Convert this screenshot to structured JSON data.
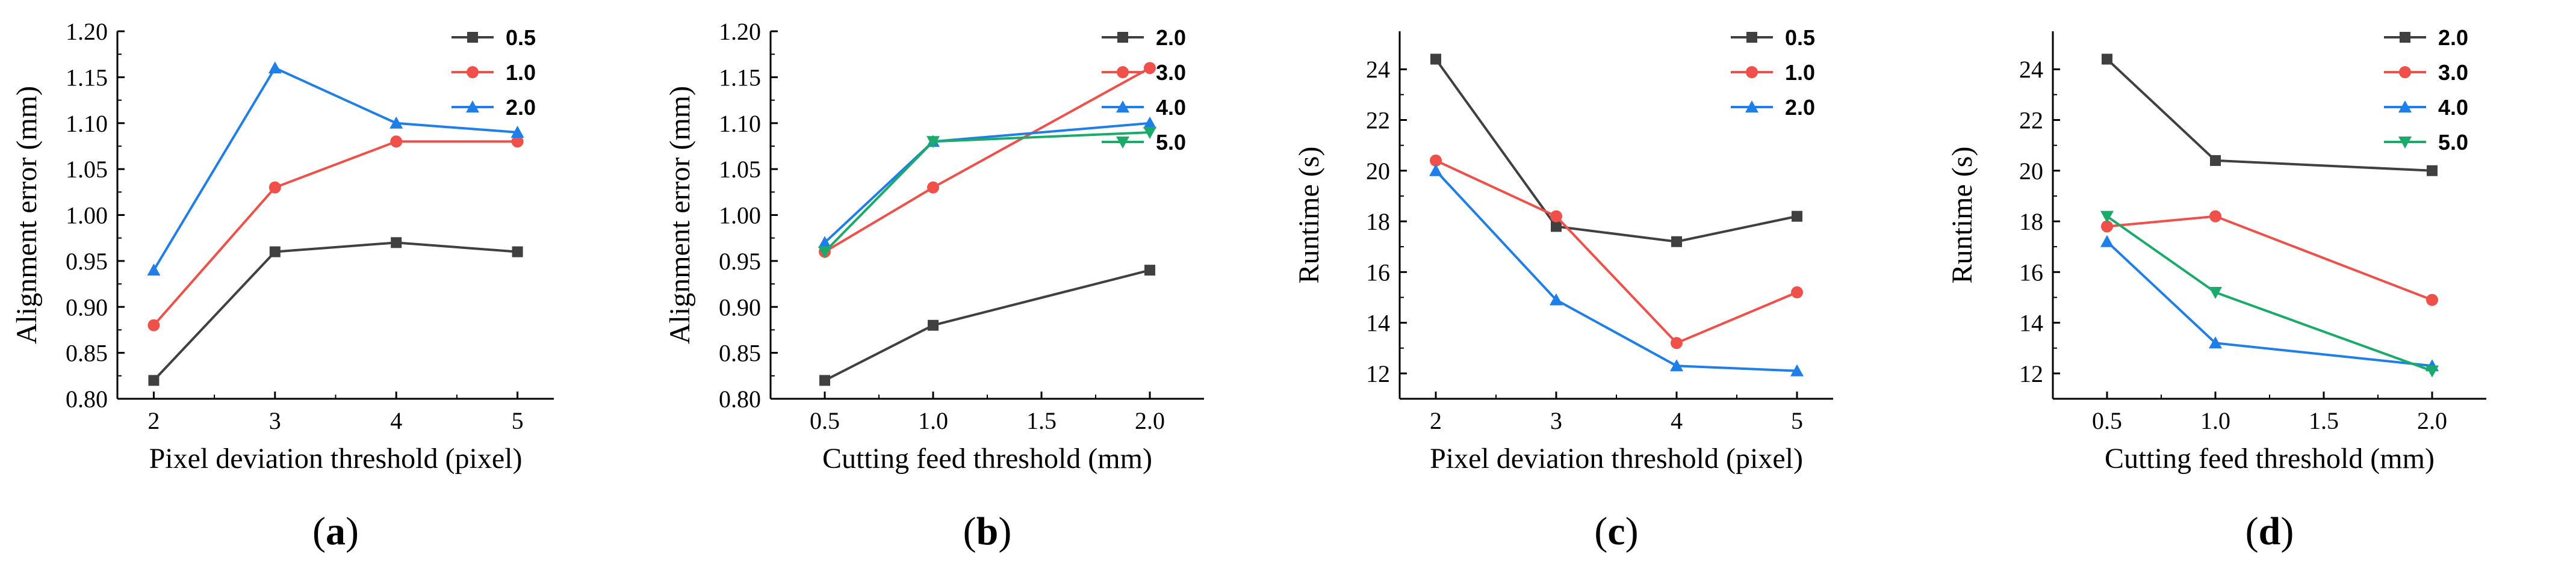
{
  "chart_data": [
    {
      "type": "line",
      "panel_label": {
        "open": "(",
        "letter": "a",
        "close": ")"
      },
      "xlabel": "Pixel deviation threshold (pixel)",
      "ylabel": "Alignment error (mm)",
      "x": [
        2,
        3,
        4,
        5
      ],
      "xticks": [
        2,
        3,
        4,
        5
      ],
      "xtick_labels": [
        "2",
        "3",
        "4",
        "5"
      ],
      "xlim": [
        1.7,
        5.3
      ],
      "ylim": [
        0.8,
        1.2
      ],
      "yticks": [
        0.8,
        0.85,
        0.9,
        0.95,
        1.0,
        1.05,
        1.1,
        1.15,
        1.2
      ],
      "ytick_labels": [
        "0.80",
        "0.85",
        "0.90",
        "0.95",
        "1.00",
        "1.05",
        "1.10",
        "1.15",
        "1.20"
      ],
      "legend_position": "top-right",
      "series": [
        {
          "name": "0.5",
          "color": "#404040",
          "marker": "square",
          "values": [
            0.82,
            0.96,
            0.97,
            0.96
          ]
        },
        {
          "name": "1.0",
          "color": "#f0504a",
          "marker": "circle",
          "values": [
            0.88,
            1.03,
            1.08,
            1.08
          ]
        },
        {
          "name": "2.0",
          "color": "#1f7fe8",
          "marker": "triangle",
          "values": [
            0.94,
            1.16,
            1.1,
            1.09
          ]
        }
      ]
    },
    {
      "type": "line",
      "panel_label": {
        "open": "(",
        "letter": "b",
        "close": ")"
      },
      "xlabel": "Cutting feed threshold (mm)",
      "ylabel": "Alignment error (mm)",
      "x": [
        0.5,
        1.0,
        2.0
      ],
      "xticks": [
        0.5,
        1.0,
        1.5,
        2.0
      ],
      "xtick_labels": [
        "0.5",
        "1.0",
        "1.5",
        "2.0"
      ],
      "xlim": [
        0.25,
        2.25
      ],
      "ylim": [
        0.8,
        1.2
      ],
      "yticks": [
        0.8,
        0.85,
        0.9,
        0.95,
        1.0,
        1.05,
        1.1,
        1.15,
        1.2
      ],
      "ytick_labels": [
        "0.80",
        "0.85",
        "0.90",
        "0.95",
        "1.00",
        "1.05",
        "1.10",
        "1.15",
        "1.20"
      ],
      "legend_position": "top-right",
      "series": [
        {
          "name": "2.0",
          "color": "#404040",
          "marker": "square",
          "values": [
            0.82,
            0.88,
            0.94
          ]
        },
        {
          "name": "3.0",
          "color": "#f0504a",
          "marker": "circle",
          "values": [
            0.96,
            1.03,
            1.16
          ]
        },
        {
          "name": "4.0",
          "color": "#1f7fe8",
          "marker": "triangle",
          "values": [
            0.97,
            1.08,
            1.1
          ]
        },
        {
          "name": "5.0",
          "color": "#1aab6a",
          "marker": "triangle-down",
          "values": [
            0.96,
            1.08,
            1.09
          ]
        }
      ]
    },
    {
      "type": "line",
      "panel_label": {
        "open": "(",
        "letter": "c",
        "close": ")"
      },
      "xlabel": "Pixel deviation threshold (pixel)",
      "ylabel": "Runtime (s)",
      "x": [
        2,
        3,
        4,
        5
      ],
      "xticks": [
        2,
        3,
        4,
        5
      ],
      "xtick_labels": [
        "2",
        "3",
        "4",
        "5"
      ],
      "xlim": [
        1.7,
        5.3
      ],
      "ylim": [
        11,
        25.5
      ],
      "yticks": [
        12,
        14,
        16,
        18,
        20,
        22,
        24
      ],
      "ytick_labels": [
        "12",
        "14",
        "16",
        "18",
        "20",
        "22",
        "24"
      ],
      "legend_position": "top-right",
      "series": [
        {
          "name": "0.5",
          "color": "#404040",
          "marker": "square",
          "values": [
            24.4,
            17.8,
            17.2,
            18.2
          ]
        },
        {
          "name": "1.0",
          "color": "#f0504a",
          "marker": "circle",
          "values": [
            20.4,
            18.2,
            13.2,
            15.2
          ]
        },
        {
          "name": "2.0",
          "color": "#1f7fe8",
          "marker": "triangle",
          "values": [
            20.0,
            14.9,
            12.3,
            12.1
          ]
        }
      ]
    },
    {
      "type": "line",
      "panel_label": {
        "open": "(",
        "letter": "d",
        "close": ")"
      },
      "xlabel": "Cutting feed threshold (mm)",
      "ylabel": "Runtime (s)",
      "x": [
        0.5,
        1.0,
        2.0
      ],
      "xticks": [
        0.5,
        1.0,
        1.5,
        2.0
      ],
      "xtick_labels": [
        "0.5",
        "1.0",
        "1.5",
        "2.0"
      ],
      "xlim": [
        0.25,
        2.25
      ],
      "ylim": [
        11,
        25.5
      ],
      "yticks": [
        12,
        14,
        16,
        18,
        20,
        22,
        24
      ],
      "ytick_labels": [
        "12",
        "14",
        "16",
        "18",
        "20",
        "22",
        "24"
      ],
      "legend_position": "top-right",
      "series": [
        {
          "name": "2.0",
          "color": "#404040",
          "marker": "square",
          "values": [
            24.4,
            20.4,
            20.0
          ]
        },
        {
          "name": "3.0",
          "color": "#f0504a",
          "marker": "circle",
          "values": [
            17.8,
            18.2,
            14.9
          ]
        },
        {
          "name": "4.0",
          "color": "#1f7fe8",
          "marker": "triangle",
          "values": [
            17.2,
            13.2,
            12.3
          ]
        },
        {
          "name": "5.0",
          "color": "#1aab6a",
          "marker": "triangle-down",
          "values": [
            18.2,
            15.2,
            12.1
          ]
        }
      ]
    }
  ]
}
